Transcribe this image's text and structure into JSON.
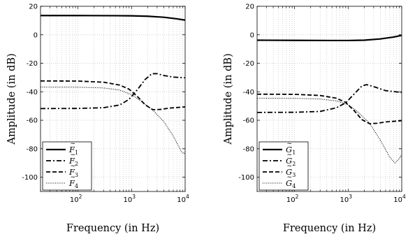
{
  "chart_data": [
    {
      "type": "line",
      "title": "",
      "xlabel": "Frequency (in Hz)",
      "ylabel": "Amplitude (in dB)",
      "xscale": "log",
      "xlim": [
        20,
        10000
      ],
      "ylim": [
        -110,
        20
      ],
      "yticks": [
        "20",
        "0",
        "-20",
        "-40",
        "-60",
        "-80",
        "-100"
      ],
      "xticks": [
        {
          "base": "10",
          "exp": "2",
          "value": 100
        },
        {
          "base": "10",
          "exp": "3",
          "value": 1000
        },
        {
          "base": "10",
          "exp": "4",
          "value": 10000
        }
      ],
      "grid": true,
      "legend_position": "bottom-left",
      "series": [
        {
          "name": "F1",
          "sym": "F",
          "sub": "1",
          "style": "solid",
          "points": [
            [
              20,
              13.5
            ],
            [
              100,
              13.5
            ],
            [
              500,
              13.4
            ],
            [
              1000,
              13.3
            ],
            [
              2000,
              13.0
            ],
            [
              4000,
              12.3
            ],
            [
              7000,
              11.2
            ],
            [
              10000,
              10.3
            ]
          ]
        },
        {
          "name": "F2",
          "sym": "F",
          "sub": "2",
          "style": "dashdot",
          "points": [
            [
              20,
              -51.8
            ],
            [
              100,
              -51.7
            ],
            [
              300,
              -51.2
            ],
            [
              600,
              -49.3
            ],
            [
              900,
              -45.3
            ],
            [
              1300,
              -38.3
            ],
            [
              1800,
              -31.3
            ],
            [
              2400,
              -27.3
            ],
            [
              3000,
              -27.3
            ],
            [
              4000,
              -28.6
            ],
            [
              6000,
              -29.7
            ],
            [
              10000,
              -30.2
            ]
          ]
        },
        {
          "name": "F3",
          "sym": "F",
          "sub": "3",
          "style": "dashed",
          "points": [
            [
              20,
              -32.4
            ],
            [
              100,
              -32.5
            ],
            [
              300,
              -33.3
            ],
            [
              600,
              -35.3
            ],
            [
              900,
              -38.2
            ],
            [
              1300,
              -43.5
            ],
            [
              1800,
              -49.2
            ],
            [
              2500,
              -52.6
            ],
            [
              3500,
              -52.4
            ],
            [
              5000,
              -51.5
            ],
            [
              10000,
              -50.6
            ]
          ]
        },
        {
          "name": "F4",
          "sym": "F",
          "sub": "4",
          "style": "dotted",
          "points": [
            [
              20,
              -36.7
            ],
            [
              100,
              -36.8
            ],
            [
              300,
              -37.3
            ],
            [
              600,
              -38.8
            ],
            [
              1000,
              -42
            ],
            [
              1500,
              -46.5
            ],
            [
              2500,
              -53
            ],
            [
              4000,
              -61
            ],
            [
              6000,
              -71
            ],
            [
              8500,
              -82
            ],
            [
              9500,
              -83.5
            ],
            [
              10000,
              -82
            ]
          ]
        }
      ]
    },
    {
      "type": "line",
      "title": "",
      "xlabel": "Frequency (in Hz)",
      "ylabel": "Amplitude (in dB)",
      "xscale": "log",
      "xlim": [
        20,
        10000
      ],
      "ylim": [
        -110,
        20
      ],
      "yticks": [
        "20",
        "0",
        "-20",
        "-40",
        "-60",
        "-80",
        "-100"
      ],
      "xticks": [
        {
          "base": "10",
          "exp": "2",
          "value": 100
        },
        {
          "base": "10",
          "exp": "3",
          "value": 1000
        },
        {
          "base": "10",
          "exp": "4",
          "value": 10000
        }
      ],
      "grid": true,
      "legend_position": "bottom-left",
      "series": [
        {
          "name": "G1",
          "sym": "G",
          "sub": "1",
          "style": "solid",
          "points": [
            [
              20,
              -3.8
            ],
            [
              100,
              -3.9
            ],
            [
              500,
              -4.0
            ],
            [
              1000,
              -4.0
            ],
            [
              2000,
              -3.8
            ],
            [
              4000,
              -2.9
            ],
            [
              7000,
              -1.6
            ],
            [
              10000,
              -0.4
            ]
          ]
        },
        {
          "name": "G2",
          "sym": "G",
          "sub": "2",
          "style": "dashdot",
          "points": [
            [
              20,
              -54.5
            ],
            [
              100,
              -54.4
            ],
            [
              300,
              -53.8
            ],
            [
              600,
              -51.3
            ],
            [
              900,
              -47.8
            ],
            [
              1300,
              -41.5
            ],
            [
              1800,
              -36
            ],
            [
              2200,
              -35
            ],
            [
              3000,
              -36.4
            ],
            [
              5000,
              -39.2
            ],
            [
              10000,
              -40.5
            ]
          ]
        },
        {
          "name": "G3",
          "sym": "G",
          "sub": "3",
          "style": "dashed",
          "points": [
            [
              20,
              -41.7
            ],
            [
              100,
              -41.8
            ],
            [
              300,
              -42.6
            ],
            [
              600,
              -44.5
            ],
            [
              900,
              -47.5
            ],
            [
              1300,
              -53.3
            ],
            [
              1800,
              -59.5
            ],
            [
              2500,
              -62.4
            ],
            [
              3500,
              -62.1
            ],
            [
              5000,
              -61.2
            ],
            [
              10000,
              -60.3
            ]
          ]
        },
        {
          "name": "G4",
          "sym": "G",
          "sub": "4",
          "style": "dotted",
          "points": [
            [
              20,
              -44.5
            ],
            [
              100,
              -44.6
            ],
            [
              300,
              -45.1
            ],
            [
              600,
              -46.4
            ],
            [
              1000,
              -49
            ],
            [
              1500,
              -54
            ],
            [
              2500,
              -62
            ],
            [
              4000,
              -74
            ],
            [
              6000,
              -86
            ],
            [
              7500,
              -90
            ],
            [
              9000,
              -87
            ],
            [
              10000,
              -84
            ]
          ]
        }
      ]
    }
  ]
}
